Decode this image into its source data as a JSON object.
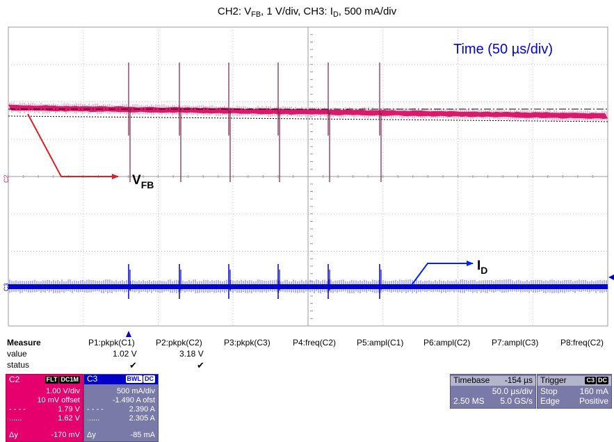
{
  "caption": {
    "parts": [
      "CH2: V",
      "FB",
      ", 1 V/div, CH3: I",
      "D",
      ", 500 mA/div"
    ]
  },
  "plot": {
    "time_label": "Time (50 µs/div)",
    "vfb_main": "V",
    "vfb_sub": "FB",
    "id_main": "I",
    "id_sub": "D",
    "c2_marker": "C2",
    "c3_marker": "C3",
    "colors": {
      "ch2": "#d81b6a",
      "ch3": "#0000cc",
      "grid": "#b8b8b8",
      "arrow_red": "#e41e1e",
      "arrow_blue": "#0022ff",
      "time_text": "#0000dd"
    }
  },
  "measure": {
    "title": "Measure",
    "row_value": "value",
    "row_status": "status",
    "params": [
      {
        "name": "P1:pkpk(C1)",
        "value": "1.02 V",
        "status": "✔"
      },
      {
        "name": "P2:pkpk(C2)",
        "value": "3.18 V",
        "status": "✔"
      },
      {
        "name": "P3:pkpk(C3)",
        "value": "",
        "status": ""
      },
      {
        "name": "P4:freq(C2)",
        "value": "",
        "status": ""
      },
      {
        "name": "P5:ampl(C1)",
        "value": "",
        "status": ""
      },
      {
        "name": "P6:ampl(C2)",
        "value": "",
        "status": ""
      },
      {
        "name": "P7:ampl(C3)",
        "value": "",
        "status": ""
      },
      {
        "name": "P8:freq(C2)",
        "value": "",
        "status": ""
      }
    ]
  },
  "c2_box": {
    "label": "C2",
    "tag1": "FLT",
    "tag2": "DC1M",
    "vdiv": "1.00 V/div",
    "offset": "10 mV offset",
    "cursor1_value": "1.79 V",
    "cursor2_value": "1.62 V",
    "dy_label": "Δy",
    "dy_value": "-170 mV",
    "color": "#e6006e"
  },
  "c3_box": {
    "label": "C3",
    "tag1": "BWL",
    "tag2": "DC",
    "vdiv": "500 mA/div",
    "offset": "-1.490 A ofst",
    "cursor1_value": "2.390 A",
    "cursor2_value": "2.305 A",
    "dy_label": "Δy",
    "dy_value": "-85 mA",
    "color": "#7a7aa8"
  },
  "timebase_box": {
    "label": "Timebase",
    "delay": "-154 µs",
    "tdiv": "50.0 µs/div",
    "samples": "2.50 MS",
    "rate": "5.0 GS/s"
  },
  "trigger_box": {
    "label": "Trigger",
    "tag1": "C3",
    "tag2": "DC",
    "mode": "Stop",
    "level": "160 mA",
    "type": "Edge",
    "slope": "Positive"
  }
}
